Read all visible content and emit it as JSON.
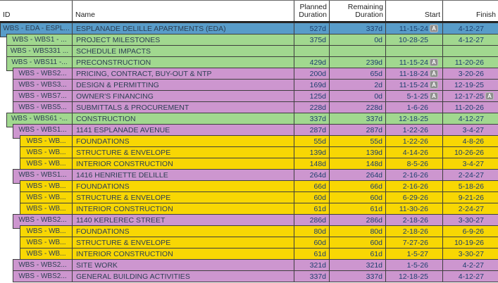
{
  "table": {
    "columns": {
      "id": "ID",
      "name": "Name",
      "planned": "Planned Duration",
      "remaining": "Remaining Duration",
      "start": "Start",
      "finish": "Finish"
    },
    "badge_label": "A",
    "colors": {
      "blue": "#589cc9",
      "green": "#a1d88f",
      "purple": "#cd96cf",
      "yellow": "#f8d703",
      "border": "#3e3e3e",
      "badge": "#8e8e8e"
    },
    "rows": [
      {
        "id": "WBS - EDA - ESPL...",
        "name": "ESPLANADE DELILLE APARTMENTS (EDA)",
        "planned": "527d",
        "remaining": "337d",
        "start": "11-15-24",
        "start_actual": true,
        "finish": "4-12-27",
        "finish_actual": false,
        "level": 0,
        "color": "blue",
        "tab_from_parent": false
      },
      {
        "id": "WBS - WBS1 - ...",
        "name": "PROJECT MILESTONES",
        "planned": "375d",
        "remaining": "0d",
        "start": "10-28-25",
        "start_actual": false,
        "finish": "4-12-27",
        "finish_actual": false,
        "level": 1,
        "color": "green",
        "tab_from_parent": true
      },
      {
        "id": "WBS - WBS331 ...",
        "name": "SCHEDULE IMPACTS",
        "planned": "",
        "remaining": "",
        "start": "",
        "start_actual": false,
        "finish": "",
        "finish_actual": false,
        "level": 1,
        "color": "green",
        "tab_from_parent": false
      },
      {
        "id": "WBS - WBS11 -...",
        "name": "PRECONSTRUCTION",
        "planned": "429d",
        "remaining": "239d",
        "start": "11-15-24",
        "start_actual": true,
        "finish": "11-20-26",
        "finish_actual": false,
        "level": 1,
        "color": "green",
        "tab_from_parent": false
      },
      {
        "id": "WBS - WBS2...",
        "name": "PRICING, CONTRACT, BUY-OUT & NTP",
        "planned": "200d",
        "remaining": "65d",
        "start": "11-18-24",
        "start_actual": true,
        "finish": "3-20-26",
        "finish_actual": false,
        "level": 2,
        "color": "purple",
        "tab_from_parent": true
      },
      {
        "id": "WBS - WBS3...",
        "name": "DESIGN & PERMITTING",
        "planned": "169d",
        "remaining": "2d",
        "start": "11-15-24",
        "start_actual": true,
        "finish": "12-19-25",
        "finish_actual": false,
        "level": 2,
        "color": "purple",
        "tab_from_parent": false
      },
      {
        "id": "WBS - WBS7...",
        "name": "OWNER'S FINANCING",
        "planned": "125d",
        "remaining": "0d",
        "start": "5-1-25",
        "start_actual": true,
        "finish": "12-17-25",
        "finish_actual": true,
        "level": 2,
        "color": "purple",
        "tab_from_parent": false
      },
      {
        "id": "WBS - WBS5...",
        "name": "SUBMITTALS & PROCUREMENT",
        "planned": "228d",
        "remaining": "228d",
        "start": "1-6-26",
        "start_actual": false,
        "finish": "11-20-26",
        "finish_actual": false,
        "level": 2,
        "color": "purple",
        "tab_from_parent": false
      },
      {
        "id": "WBS - WBS61 -...",
        "name": "CONSTRUCTION",
        "planned": "337d",
        "remaining": "337d",
        "start": "12-18-25",
        "start_actual": false,
        "finish": "4-12-27",
        "finish_actual": false,
        "level": 1,
        "color": "green",
        "tab_from_parent": false
      },
      {
        "id": "WBS - WBS1...",
        "name": "1141 ESPLANADE AVENUE",
        "planned": "287d",
        "remaining": "287d",
        "start": "1-22-26",
        "start_actual": false,
        "finish": "3-4-27",
        "finish_actual": false,
        "level": 2,
        "color": "purple",
        "tab_from_parent": true
      },
      {
        "id": "WBS - WB...",
        "name": "FOUNDATIONS",
        "planned": "55d",
        "remaining": "55d",
        "start": "1-22-26",
        "start_actual": false,
        "finish": "4-8-26",
        "finish_actual": false,
        "level": 3,
        "color": "yellow",
        "tab_from_parent": true
      },
      {
        "id": "WBS - WB...",
        "name": "STRUCTURE & ENVELOPE",
        "planned": "139d",
        "remaining": "139d",
        "start": "4-14-26",
        "start_actual": false,
        "finish": "10-26-26",
        "finish_actual": false,
        "level": 3,
        "color": "yellow",
        "tab_from_parent": false
      },
      {
        "id": "WBS - WB...",
        "name": "INTERIOR CONSTRUCTION",
        "planned": "148d",
        "remaining": "148d",
        "start": "8-5-26",
        "start_actual": false,
        "finish": "3-4-27",
        "finish_actual": false,
        "level": 3,
        "color": "yellow",
        "tab_from_parent": false
      },
      {
        "id": "WBS - WBS1...",
        "name": "1416 HENRIETTE DELILLE",
        "planned": "264d",
        "remaining": "264d",
        "start": "2-16-26",
        "start_actual": false,
        "finish": "2-24-27",
        "finish_actual": false,
        "level": 2,
        "color": "purple",
        "tab_from_parent": false
      },
      {
        "id": "WBS - WB...",
        "name": "FOUNDATIONS",
        "planned": "66d",
        "remaining": "66d",
        "start": "2-16-26",
        "start_actual": false,
        "finish": "5-18-26",
        "finish_actual": false,
        "level": 3,
        "color": "yellow",
        "tab_from_parent": true
      },
      {
        "id": "WBS - WB...",
        "name": "STRUCTURE & ENVELOPE",
        "planned": "60d",
        "remaining": "60d",
        "start": "6-29-26",
        "start_actual": false,
        "finish": "9-21-26",
        "finish_actual": false,
        "level": 3,
        "color": "yellow",
        "tab_from_parent": false
      },
      {
        "id": "WBS - WB...",
        "name": "INTERIOR CONSTRUCTION",
        "planned": "61d",
        "remaining": "61d",
        "start": "11-30-26",
        "start_actual": false,
        "finish": "2-24-27",
        "finish_actual": false,
        "level": 3,
        "color": "yellow",
        "tab_from_parent": false
      },
      {
        "id": "WBS - WBS2...",
        "name": "1140 KERLEREC STREET",
        "planned": "286d",
        "remaining": "286d",
        "start": "2-18-26",
        "start_actual": false,
        "finish": "3-30-27",
        "finish_actual": false,
        "level": 2,
        "color": "purple",
        "tab_from_parent": false
      },
      {
        "id": "WBS - WB...",
        "name": "FOUNDATIONS",
        "planned": "80d",
        "remaining": "80d",
        "start": "2-18-26",
        "start_actual": false,
        "finish": "6-9-26",
        "finish_actual": false,
        "level": 3,
        "color": "yellow",
        "tab_from_parent": true
      },
      {
        "id": "WBS - WB...",
        "name": "STRUCTURE & ENVELOPE",
        "planned": "60d",
        "remaining": "60d",
        "start": "7-27-26",
        "start_actual": false,
        "finish": "10-19-26",
        "finish_actual": false,
        "level": 3,
        "color": "yellow",
        "tab_from_parent": false
      },
      {
        "id": "WBS - WB...",
        "name": "INTERIOR CONSTRUCTION",
        "planned": "61d",
        "remaining": "61d",
        "start": "1-5-27",
        "start_actual": false,
        "finish": "3-30-27",
        "finish_actual": false,
        "level": 3,
        "color": "yellow",
        "tab_from_parent": false
      },
      {
        "id": "WBS - WBS2...",
        "name": "SITE WORK",
        "planned": "321d",
        "remaining": "321d",
        "start": "1-5-26",
        "start_actual": false,
        "finish": "4-2-27",
        "finish_actual": false,
        "level": 2,
        "color": "purple",
        "tab_from_parent": false
      },
      {
        "id": "WBS - WBS2...",
        "name": "GENERAL BUILDING ACTIVITIES",
        "planned": "337d",
        "remaining": "337d",
        "start": "12-18-25",
        "start_actual": false,
        "finish": "4-12-27",
        "finish_actual": false,
        "level": 2,
        "color": "purple",
        "tab_from_parent": false
      }
    ]
  }
}
